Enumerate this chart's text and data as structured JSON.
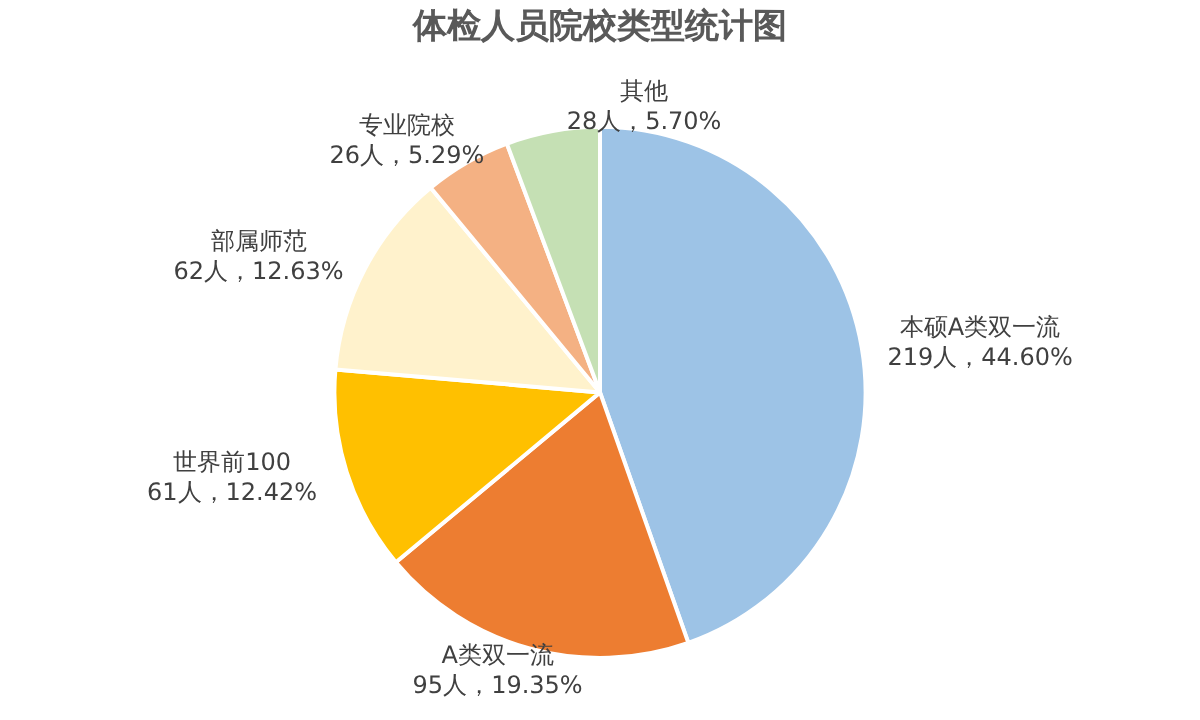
{
  "chart_data": {
    "type": "pie",
    "title": "体检人员院校类型统计图",
    "categories": [
      "本硕A类双一流",
      "A类双一流",
      "世界前100",
      "部属师范",
      "专业院校",
      "其他"
    ],
    "values": [
      219,
      95,
      61,
      62,
      26,
      28
    ],
    "value_labels": [
      "219人，44.60%",
      "95人，19.35%",
      "61人，12.42%",
      "62人，12.63%",
      "26人，5.29%",
      "28人，5.70%"
    ],
    "colors": [
      "#9dc3e6",
      "#ed7d31",
      "#ffc000",
      "#fff2cc",
      "#f4b183",
      "#c5e0b4"
    ],
    "legend": false
  }
}
